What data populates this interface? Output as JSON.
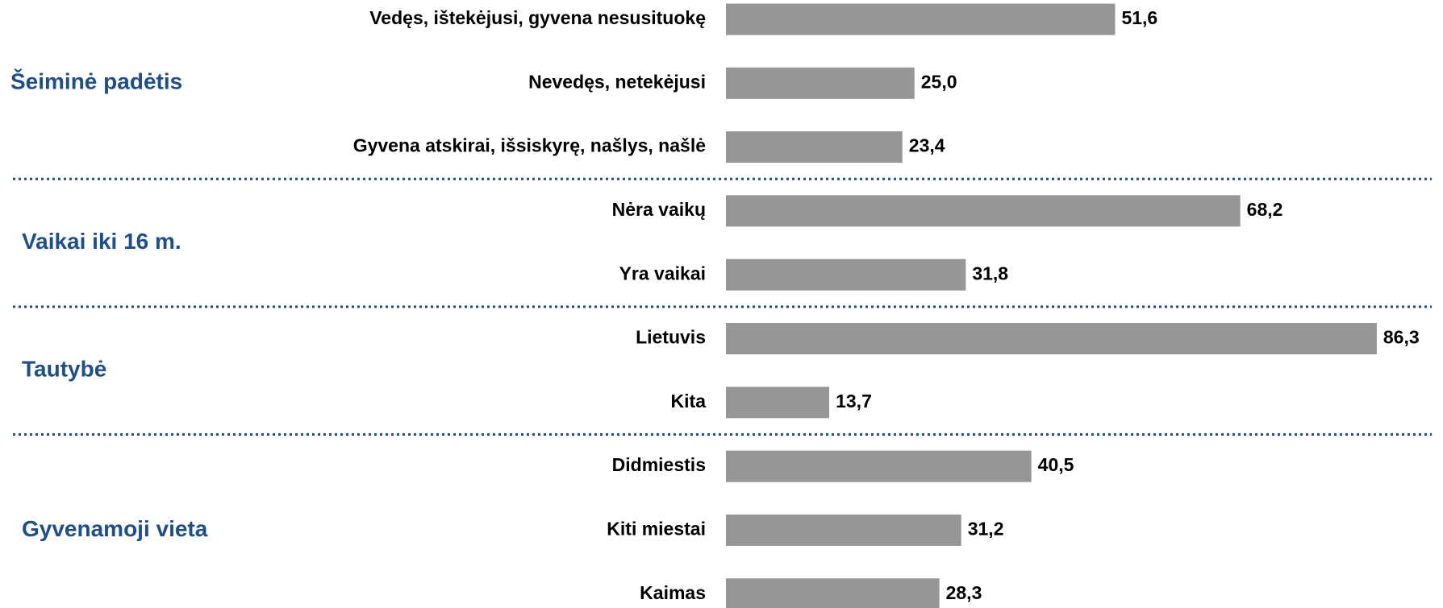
{
  "chart_data": {
    "type": "bar",
    "orientation": "horizontal",
    "color": "#969696",
    "groups": [
      {
        "name": "Šeiminė padėtis",
        "categories": [
          "Vedęs, ištekėjusi, gyvena nesusituokę",
          "Nevedęs, netekėjusi",
          "Gyvena atskirai, išsiskyrę, našlys, našlė"
        ],
        "values": [
          51.6,
          25.0,
          23.4
        ],
        "value_labels": [
          "51,6",
          "25,0",
          "23,4"
        ]
      },
      {
        "name": "Vaikai iki 16 m.",
        "categories": [
          "Nėra vaikų",
          "Yra vaikai"
        ],
        "values": [
          68.2,
          31.8
        ],
        "value_labels": [
          "68,2",
          "31,8"
        ]
      },
      {
        "name": "Tautybė",
        "categories": [
          "Lietuvis",
          "Kita"
        ],
        "values": [
          86.3,
          13.7
        ],
        "value_labels": [
          "86,3",
          "13,7"
        ]
      },
      {
        "name": "Gyvenamoji vieta",
        "categories": [
          "Didmiestis",
          "Kiti miestai",
          "Kaimas"
        ],
        "values": [
          40.5,
          31.2,
          28.3
        ],
        "value_labels": [
          "40,5",
          "31,2",
          "28,3"
        ]
      }
    ]
  }
}
